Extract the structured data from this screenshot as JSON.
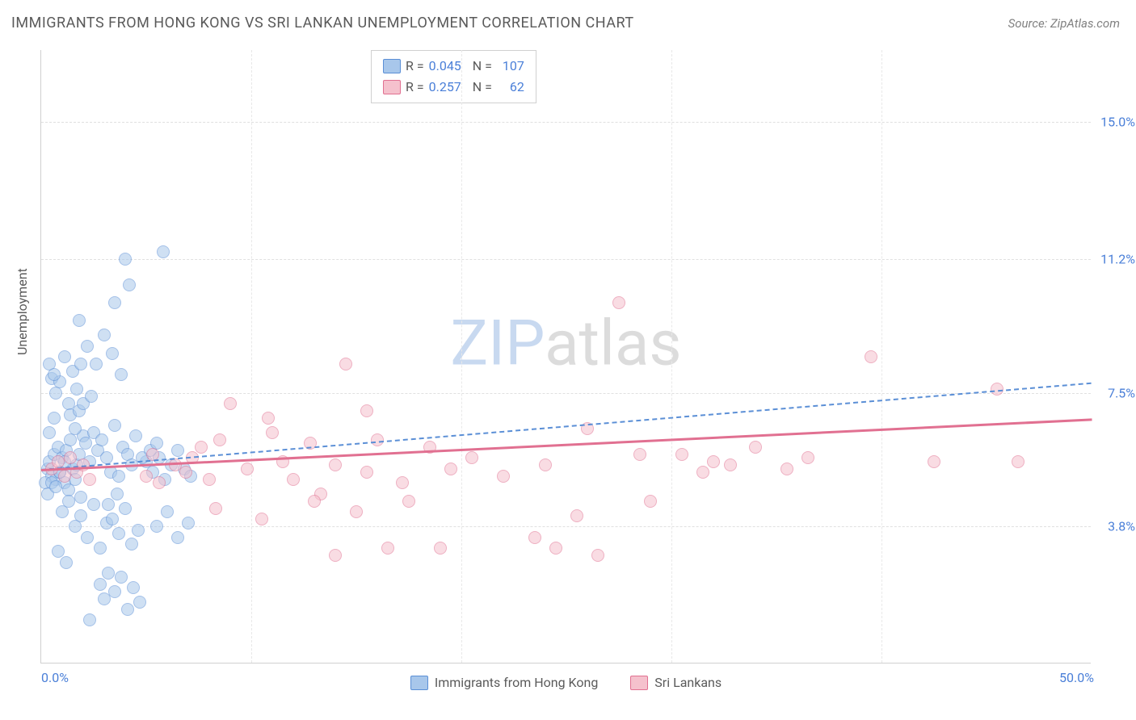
{
  "title": "IMMIGRANTS FROM HONG KONG VS SRI LANKAN UNEMPLOYMENT CORRELATION CHART",
  "source": "Source: ZipAtlas.com",
  "watermark": {
    "part1": "ZIP",
    "part2": "atlas"
  },
  "chart": {
    "type": "scatter",
    "y_axis_label": "Unemployment",
    "background_color": "#ffffff",
    "grid_color": "#e0e0e0",
    "axis_color": "#d0d0d0",
    "tick_label_color": "#4a7fd8",
    "label_color": "#5a5a5a",
    "xlim": [
      0,
      50
    ],
    "ylim": [
      0,
      17
    ],
    "x_ticks": [
      {
        "pos": 0,
        "label": "0.0%"
      },
      {
        "pos": 50,
        "label": "50.0%"
      }
    ],
    "x_minor_ticks": [
      10,
      20,
      30,
      40
    ],
    "y_ticks": [
      {
        "pos": 3.8,
        "label": "3.8%"
      },
      {
        "pos": 7.5,
        "label": "7.5%"
      },
      {
        "pos": 11.2,
        "label": "11.2%"
      },
      {
        "pos": 15.0,
        "label": "15.0%"
      }
    ],
    "marker_size": 16,
    "marker_opacity": 0.55,
    "series": [
      {
        "name": "Immigrants from Hong Kong",
        "key": "hk",
        "fill_color": "#a8c7eb",
        "stroke_color": "#5b8fd6",
        "R": "0.045",
        "N": "107",
        "trend": {
          "x1": 0,
          "y1": 5.4,
          "x2": 50,
          "y2": 7.8,
          "stroke": "#5b8fd6",
          "dash": true,
          "width": 2
        },
        "points": [
          [
            0.3,
            5.4
          ],
          [
            0.4,
            5.6
          ],
          [
            0.5,
            5.2
          ],
          [
            0.6,
            5.8
          ],
          [
            0.7,
            5.1
          ],
          [
            0.8,
            6.0
          ],
          [
            0.9,
            5.3
          ],
          [
            1.0,
            5.7
          ],
          [
            1.1,
            5.0
          ],
          [
            1.2,
            5.9
          ],
          [
            1.3,
            4.8
          ],
          [
            1.4,
            6.2
          ],
          [
            1.5,
            5.4
          ],
          [
            1.6,
            5.1
          ],
          [
            1.7,
            5.5
          ],
          [
            1.8,
            5.8
          ],
          [
            1.9,
            4.6
          ],
          [
            2.0,
            6.3
          ],
          [
            0.5,
            7.9
          ],
          [
            0.7,
            7.5
          ],
          [
            0.9,
            7.8
          ],
          [
            1.1,
            8.5
          ],
          [
            1.3,
            7.2
          ],
          [
            1.5,
            8.1
          ],
          [
            1.7,
            7.6
          ],
          [
            1.9,
            8.3
          ],
          [
            2.1,
            6.1
          ],
          [
            2.3,
            5.6
          ],
          [
            2.5,
            6.4
          ],
          [
            2.7,
            5.9
          ],
          [
            2.9,
            6.2
          ],
          [
            3.1,
            5.7
          ],
          [
            3.3,
            5.3
          ],
          [
            3.5,
            6.6
          ],
          [
            3.7,
            5.2
          ],
          [
            3.9,
            6.0
          ],
          [
            4.1,
            5.8
          ],
          [
            4.3,
            5.5
          ],
          [
            4.5,
            6.3
          ],
          [
            1.0,
            4.2
          ],
          [
            1.3,
            4.5
          ],
          [
            1.6,
            3.8
          ],
          [
            1.9,
            4.1
          ],
          [
            2.2,
            3.5
          ],
          [
            2.5,
            4.4
          ],
          [
            2.8,
            3.2
          ],
          [
            3.1,
            3.9
          ],
          [
            3.4,
            4.0
          ],
          [
            3.7,
            3.6
          ],
          [
            4.0,
            4.3
          ],
          [
            4.3,
            3.3
          ],
          [
            4.6,
            3.7
          ],
          [
            2.8,
            2.2
          ],
          [
            3.0,
            1.8
          ],
          [
            3.2,
            2.5
          ],
          [
            3.5,
            2.0
          ],
          [
            3.8,
            2.4
          ],
          [
            4.1,
            1.5
          ],
          [
            4.4,
            2.1
          ],
          [
            4.7,
            1.7
          ],
          [
            5.0,
            5.6
          ],
          [
            5.3,
            5.3
          ],
          [
            5.6,
            5.7
          ],
          [
            5.9,
            5.1
          ],
          [
            6.2,
            5.5
          ],
          [
            6.5,
            5.9
          ],
          [
            6.8,
            5.4
          ],
          [
            7.1,
            5.2
          ],
          [
            5.5,
            3.8
          ],
          [
            6.0,
            4.2
          ],
          [
            6.5,
            3.5
          ],
          [
            7.0,
            3.9
          ],
          [
            1.8,
            9.5
          ],
          [
            2.2,
            8.8
          ],
          [
            2.6,
            8.3
          ],
          [
            3.0,
            9.1
          ],
          [
            3.4,
            8.6
          ],
          [
            3.8,
            8.0
          ],
          [
            4.0,
            11.2
          ],
          [
            4.2,
            10.5
          ],
          [
            5.8,
            11.4
          ],
          [
            3.5,
            10.0
          ],
          [
            2.3,
            1.2
          ],
          [
            1.2,
            2.8
          ],
          [
            0.8,
            3.1
          ],
          [
            0.6,
            6.8
          ],
          [
            0.4,
            6.4
          ],
          [
            0.2,
            5.0
          ],
          [
            0.3,
            4.7
          ],
          [
            1.4,
            6.9
          ],
          [
            1.6,
            6.5
          ],
          [
            1.8,
            7.0
          ],
          [
            2.0,
            7.2
          ],
          [
            2.4,
            7.4
          ],
          [
            0.5,
            5.0
          ],
          [
            0.7,
            4.9
          ],
          [
            0.9,
            5.3
          ],
          [
            1.1,
            5.6
          ],
          [
            4.8,
            5.7
          ],
          [
            5.2,
            5.9
          ],
          [
            5.5,
            6.1
          ],
          [
            0.4,
            8.3
          ],
          [
            0.6,
            8.0
          ],
          [
            3.6,
            4.7
          ],
          [
            3.2,
            4.4
          ]
        ]
      },
      {
        "name": "Sri Lankans",
        "key": "sl",
        "fill_color": "#f5c1cd",
        "stroke_color": "#e17091",
        "R": "0.257",
        "N": "62",
        "trend": {
          "x1": 0,
          "y1": 5.4,
          "x2": 50,
          "y2": 6.8,
          "stroke": "#e17091",
          "dash": false,
          "width": 3
        },
        "points": [
          [
            0.5,
            5.4
          ],
          [
            0.8,
            5.6
          ],
          [
            1.1,
            5.2
          ],
          [
            1.4,
            5.7
          ],
          [
            1.7,
            5.3
          ],
          [
            2.0,
            5.5
          ],
          [
            2.3,
            5.1
          ],
          [
            5.0,
            5.2
          ],
          [
            5.3,
            5.8
          ],
          [
            5.6,
            5.0
          ],
          [
            6.4,
            5.5
          ],
          [
            6.9,
            5.3
          ],
          [
            7.2,
            5.7
          ],
          [
            7.6,
            6.0
          ],
          [
            8.0,
            5.1
          ],
          [
            8.5,
            6.2
          ],
          [
            9.8,
            5.4
          ],
          [
            11.0,
            6.4
          ],
          [
            11.5,
            5.6
          ],
          [
            12.0,
            5.1
          ],
          [
            12.8,
            6.1
          ],
          [
            13.3,
            4.7
          ],
          [
            14.0,
            5.5
          ],
          [
            15.5,
            5.3
          ],
          [
            16.0,
            6.2
          ],
          [
            17.2,
            5.0
          ],
          [
            18.5,
            6.0
          ],
          [
            19.5,
            5.4
          ],
          [
            8.3,
            4.3
          ],
          [
            10.5,
            4.0
          ],
          [
            13.0,
            4.5
          ],
          [
            15.0,
            4.2
          ],
          [
            17.5,
            4.5
          ],
          [
            9.0,
            7.2
          ],
          [
            10.8,
            6.8
          ],
          [
            14.5,
            8.3
          ],
          [
            15.5,
            7.0
          ],
          [
            20.5,
            5.7
          ],
          [
            22.0,
            5.2
          ],
          [
            23.5,
            3.5
          ],
          [
            24.5,
            3.2
          ],
          [
            25.5,
            4.1
          ],
          [
            26.0,
            6.5
          ],
          [
            27.5,
            10.0
          ],
          [
            28.5,
            5.8
          ],
          [
            29.0,
            4.5
          ],
          [
            30.5,
            5.8
          ],
          [
            31.5,
            5.3
          ],
          [
            32.0,
            5.6
          ],
          [
            32.8,
            5.5
          ],
          [
            34.0,
            6.0
          ],
          [
            35.5,
            5.4
          ],
          [
            36.5,
            5.7
          ],
          [
            39.5,
            8.5
          ],
          [
            42.5,
            5.6
          ],
          [
            45.5,
            7.6
          ],
          [
            46.5,
            5.6
          ],
          [
            14.0,
            3.0
          ],
          [
            16.5,
            3.2
          ],
          [
            19.0,
            3.2
          ],
          [
            24.0,
            5.5
          ],
          [
            26.5,
            3.0
          ]
        ]
      }
    ],
    "bottom_legend": [
      {
        "label": "Immigrants from Hong Kong",
        "fill": "#a8c7eb",
        "stroke": "#5b8fd6"
      },
      {
        "label": "Sri Lankans",
        "fill": "#f5c1cd",
        "stroke": "#e17091"
      }
    ]
  }
}
